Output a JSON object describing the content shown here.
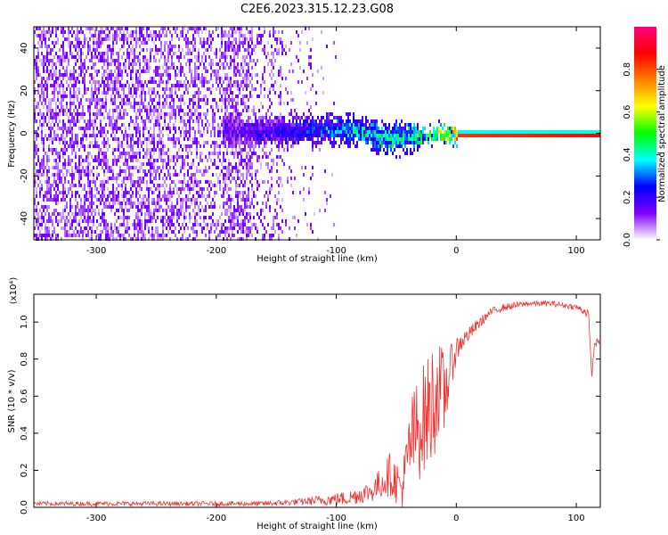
{
  "title": "C2E6.2023.315.12.23.G08",
  "chart_data": [
    {
      "type": "heatmap",
      "title": "C2E6.2023.315.12.23.G08",
      "xlabel": "Height of straight line (km)",
      "ylabel": "Frequency (Hz)",
      "xlim": [
        -352,
        120
      ],
      "ylim": [
        -50,
        50
      ],
      "xticks": [
        -300,
        -200,
        -100,
        0,
        100
      ],
      "xtick_labels": [
        "-300",
        "-200",
        "-100",
        "0",
        "100"
      ],
      "yticks": [
        -40,
        -20,
        0,
        20,
        40
      ],
      "ytick_labels": [
        "-40",
        "-20",
        "0",
        "20",
        "40"
      ],
      "grid": false,
      "colorbar": {
        "label": "Normalized spectral amplitude",
        "range": [
          0,
          1
        ],
        "ticks": [
          0.0,
          0.2,
          0.4,
          0.6,
          0.8
        ],
        "tick_labels": [
          "0.0",
          "0.2",
          "0.4",
          "0.6",
          "0.8"
        ],
        "colors": [
          "#ffffff",
          "#8000ff",
          "#0000ff",
          "#00ffff",
          "#00ff00",
          "#ffff00",
          "#ff8000",
          "#ff0000",
          "#ff0080"
        ]
      },
      "ridge": {
        "x": [
          -190,
          -160,
          -130,
          -100,
          -80,
          -60,
          -40,
          -25,
          -15,
          -10,
          0,
          120
        ],
        "freq": [
          2,
          1,
          2,
          3,
          2,
          -2,
          -1,
          -0.5,
          1,
          0,
          0,
          0
        ],
        "amplitude": [
          0.2,
          0.25,
          0.3,
          0.4,
          0.45,
          0.5,
          0.5,
          0.6,
          0.7,
          0.8,
          0.9,
          0.95
        ]
      }
    },
    {
      "type": "line",
      "xlabel": "Height of straight line (km)",
      "ylabel": "SNR (10 * v/v)",
      "multiplier": "(x10⁴)",
      "xlim": [
        -352,
        120
      ],
      "ylim": [
        0,
        1.15
      ],
      "xticks": [
        -300,
        -200,
        -100,
        0,
        100
      ],
      "xtick_labels": [
        "-300",
        "-200",
        "-100",
        "0",
        "100"
      ],
      "yticks": [
        0.0,
        0.2,
        0.4,
        0.6,
        0.8,
        1.0
      ],
      "ytick_labels": [
        "0.0",
        "0.2",
        "0.4",
        "0.6",
        "0.8",
        "1.0"
      ],
      "grid": false,
      "series": [
        {
          "color": "#ee3333",
          "x": [
            -352,
            -300,
            -250,
            -200,
            -160,
            -130,
            -110,
            -90,
            -70,
            -55,
            -45,
            -38,
            -30,
            -25,
            -20,
            -15,
            -10,
            -5,
            0,
            5,
            10,
            20,
            30,
            40,
            60,
            80,
            100,
            110,
            113,
            115,
            117,
            120
          ],
          "y": [
            0.02,
            0.02,
            0.02,
            0.02,
            0.02,
            0.03,
            0.04,
            0.05,
            0.09,
            0.18,
            0.1,
            0.35,
            0.45,
            0.5,
            0.55,
            0.65,
            0.6,
            0.75,
            0.85,
            0.9,
            0.93,
            1.0,
            1.06,
            1.08,
            1.1,
            1.1,
            1.08,
            1.05,
            0.7,
            0.88,
            0.89,
            0.9
          ],
          "noise": [
            0.012,
            0.012,
            0.012,
            0.012,
            0.014,
            0.018,
            0.03,
            0.04,
            0.06,
            0.12,
            0.12,
            0.25,
            0.3,
            0.3,
            0.35,
            0.25,
            0.25,
            0.12,
            0.08,
            0.05,
            0.04,
            0.03,
            0.02,
            0.02,
            0.015,
            0.015,
            0.015,
            0.03,
            0.0,
            0.03,
            0.02,
            0.02
          ]
        }
      ]
    }
  ]
}
